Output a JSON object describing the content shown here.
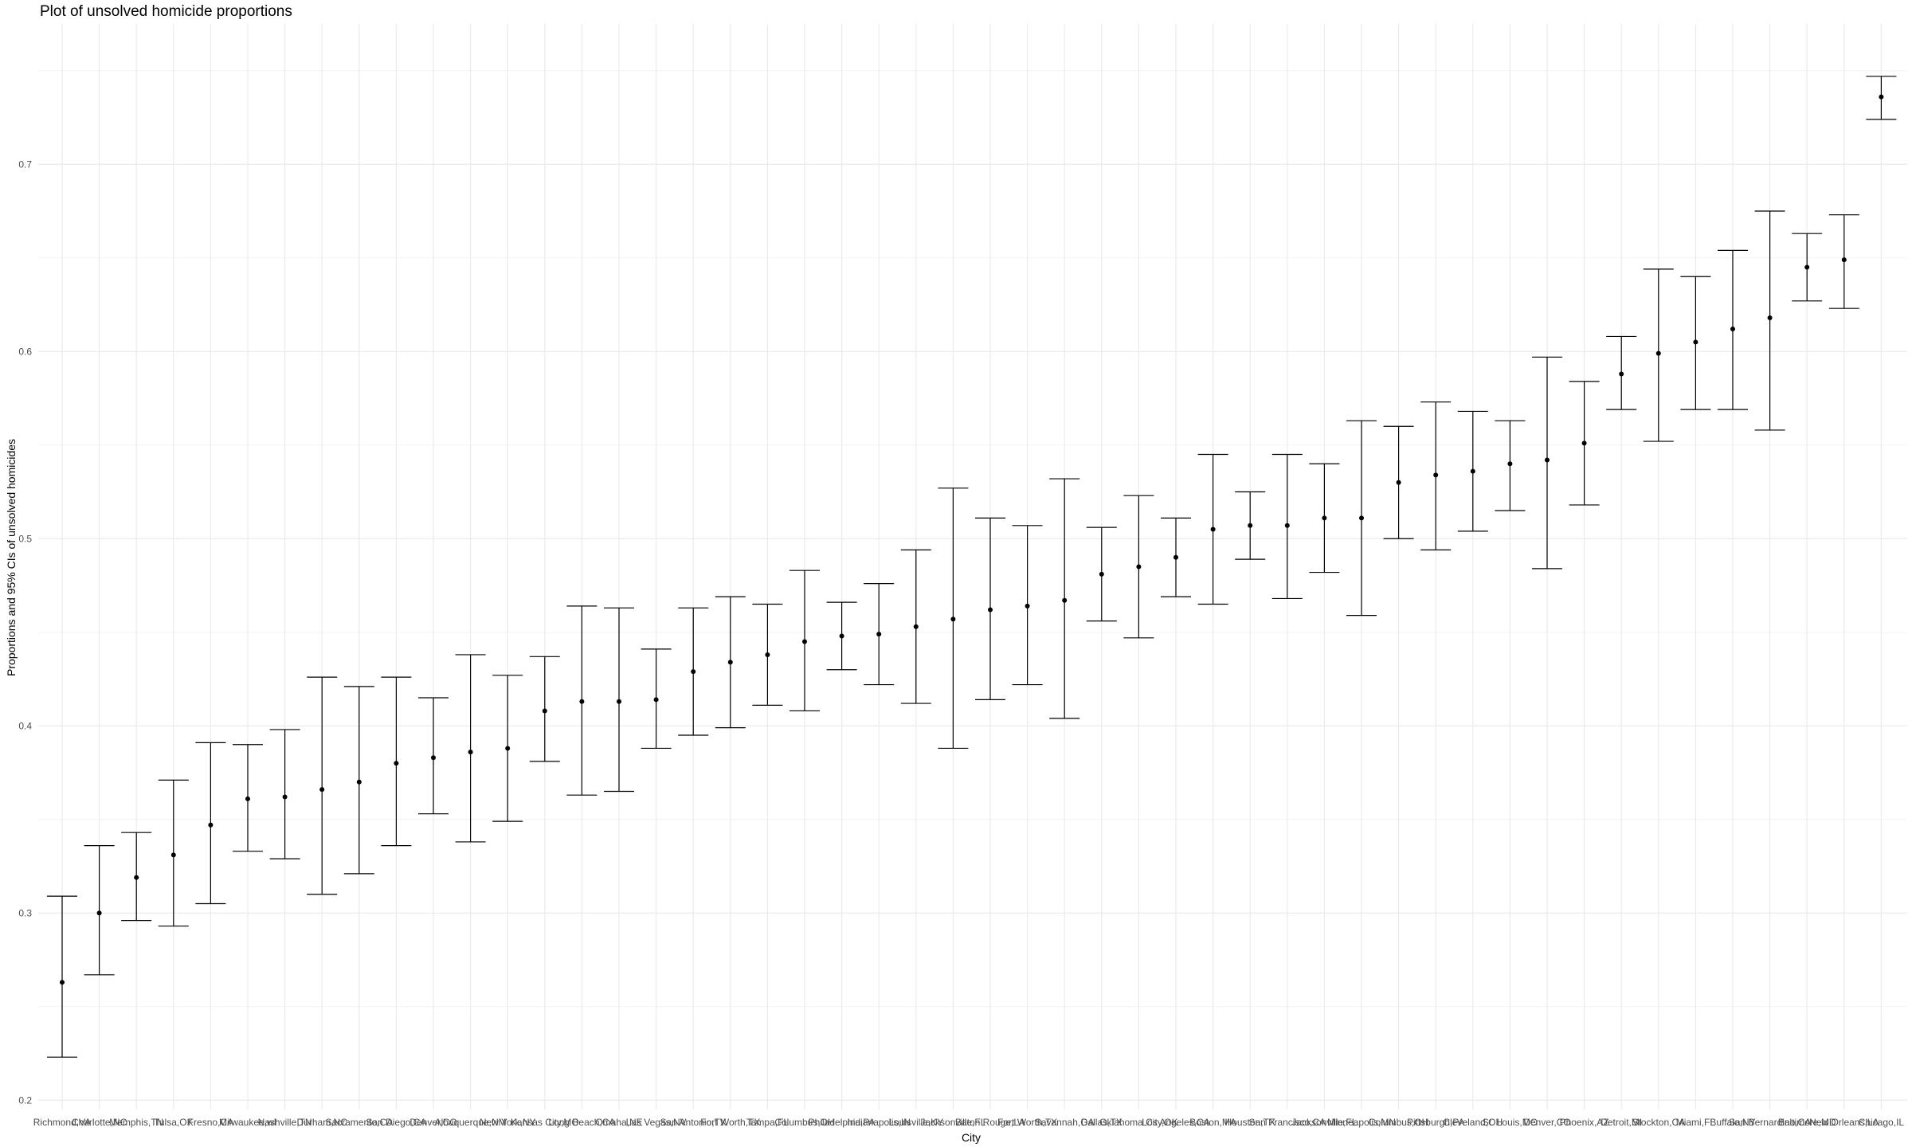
{
  "chart_data": {
    "type": "errorbar",
    "title": "Plot of unsolved homicide proportions",
    "xlabel": "City",
    "ylabel": "Proportions and 95% CIs of unsolved homicides",
    "ylim": [
      0.195,
      0.775
    ],
    "yticks": [
      0.2,
      0.3,
      0.4,
      0.5,
      0.6,
      0.7
    ],
    "grid": true,
    "categories": [
      "Richmond,VA",
      "Charlotte,NC",
      "Memphis,TN",
      "Tulsa,OK",
      "Fresno,CA",
      "Milwaukee,wI",
      "Nashville,TN",
      "Durham,NC",
      "Sacramento,CA",
      "San Diego,CA",
      "Denver,CO",
      "Albuquerque,NM",
      "New York,NY",
      "Kansas City,MO",
      "Long Beach,CA",
      "Omaha,NE",
      "Las Vegas,NV",
      "San Antonio,TX",
      "Fort Worth,TX",
      "Tampa,FL",
      "Columbus,OH",
      "Philadelphia,PA",
      "Indianapolis,IN",
      "Louisville,KY",
      "Jacksonville,FL",
      "Baton Rouge,LA",
      "Fort Worth,TX",
      "Savannah,GA",
      "Dallas,TX",
      "Oklahoma City,OK",
      "Los Angeles,CA",
      "Boston,MA",
      "Houston,TX",
      "San Francisco,CA",
      "Jacksonville,FL",
      "Minneapolis,MN",
      "Columbus,OH",
      "Pittsburgh,PA",
      "Cleveland,OH",
      "St. Louis,MO",
      "Denver,CO",
      "Phoenix,AZ",
      "Detroit,MI",
      "Stockton,CA",
      "Miami,FL",
      "Buffalo,NY",
      "San Bernardino,CA",
      "Baltimore,MD",
      "New Orleans,LA",
      "Chicago,IL"
    ],
    "estimates": [
      0.263,
      0.3,
      0.319,
      0.331,
      0.347,
      0.361,
      0.362,
      0.366,
      0.37,
      0.38,
      0.383,
      0.386,
      0.388,
      0.408,
      0.413,
      0.413,
      0.414,
      0.429,
      0.434,
      0.438,
      0.445,
      0.448,
      0.449,
      0.453,
      0.457,
      0.462,
      0.464,
      0.467,
      0.481,
      0.485,
      0.49,
      0.505,
      0.507,
      0.507,
      0.511,
      0.511,
      0.53,
      0.534,
      0.536,
      0.54,
      0.542,
      0.551,
      0.588,
      0.599,
      0.605,
      0.612,
      0.618,
      0.645,
      0.649,
      0.736
    ],
    "lower": [
      0.223,
      0.267,
      0.296,
      0.293,
      0.305,
      0.333,
      0.329,
      0.31,
      0.321,
      0.336,
      0.353,
      0.338,
      0.349,
      0.381,
      0.363,
      0.365,
      0.388,
      0.395,
      0.399,
      0.411,
      0.408,
      0.43,
      0.422,
      0.412,
      0.388,
      0.414,
      0.422,
      0.404,
      0.456,
      0.447,
      0.469,
      0.465,
      0.489,
      0.468,
      0.482,
      0.459,
      0.5,
      0.494,
      0.504,
      0.515,
      0.484,
      0.518,
      0.569,
      0.552,
      0.569,
      0.569,
      0.558,
      0.627,
      0.623,
      0.724
    ],
    "upper": [
      0.309,
      0.336,
      0.343,
      0.371,
      0.391,
      0.39,
      0.398,
      0.426,
      0.421,
      0.426,
      0.415,
      0.438,
      0.427,
      0.437,
      0.464,
      0.463,
      0.441,
      0.463,
      0.469,
      0.465,
      0.483,
      0.466,
      0.476,
      0.494,
      0.527,
      0.511,
      0.507,
      0.532,
      0.506,
      0.523,
      0.511,
      0.545,
      0.525,
      0.545,
      0.54,
      0.563,
      0.56,
      0.573,
      0.568,
      0.563,
      0.597,
      0.584,
      0.608,
      0.644,
      0.64,
      0.654,
      0.675,
      0.663,
      0.673,
      0.747
    ]
  }
}
